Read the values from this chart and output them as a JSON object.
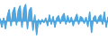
{
  "values": [
    3,
    -8,
    4,
    -10,
    6,
    15,
    -6,
    12,
    18,
    -5,
    14,
    20,
    -8,
    16,
    22,
    -10,
    14,
    18,
    -12,
    8,
    -18,
    2,
    -4,
    2,
    -2,
    4,
    -6,
    8,
    -4,
    6,
    -8,
    4,
    7,
    -3,
    6,
    10,
    -4,
    7,
    -2,
    5,
    -6,
    3,
    9,
    -4,
    6,
    4,
    -3,
    5,
    -7,
    12,
    -15,
    4,
    7,
    -3,
    5,
    8,
    -4,
    12,
    -8,
    5
  ],
  "line_color": "#4da6df",
  "fill_color": "#4da6df",
  "background_color": "#ffffff",
  "linewidth": 0.7
}
